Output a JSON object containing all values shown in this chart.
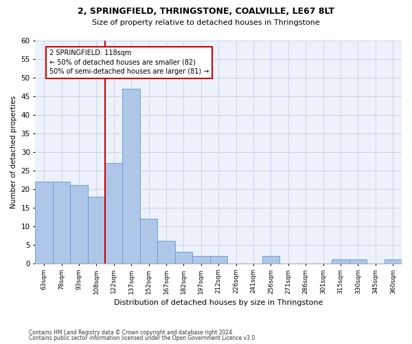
{
  "title_line1": "2, SPRINGFIELD, THRINGSTONE, COALVILLE, LE67 8LT",
  "title_line2": "Size of property relative to detached houses in Thringstone",
  "xlabel": "Distribution of detached houses by size in Thringstone",
  "ylabel": "Number of detached properties",
  "categories": [
    "63sqm",
    "78sqm",
    "93sqm",
    "108sqm",
    "122sqm",
    "137sqm",
    "152sqm",
    "167sqm",
    "182sqm",
    "197sqm",
    "212sqm",
    "226sqm",
    "241sqm",
    "256sqm",
    "271sqm",
    "286sqm",
    "301sqm",
    "315sqm",
    "330sqm",
    "345sqm",
    "360sqm"
  ],
  "values": [
    22,
    22,
    21,
    18,
    27,
    47,
    12,
    6,
    3,
    2,
    2,
    0,
    0,
    2,
    0,
    0,
    0,
    1,
    1,
    0,
    1
  ],
  "bar_color": "#aec6e8",
  "bar_edgecolor": "#5b9bd5",
  "vline_color": "#cc0000",
  "annotation_text": "2 SPRINGFIELD: 118sqm\n← 50% of detached houses are smaller (82)\n50% of semi-detached houses are larger (81) →",
  "annotation_box_edgecolor": "#cc0000",
  "ylim": [
    0,
    60
  ],
  "yticks": [
    0,
    5,
    10,
    15,
    20,
    25,
    30,
    35,
    40,
    45,
    50,
    55,
    60
  ],
  "footer_line1": "Contains HM Land Registry data © Crown copyright and database right 2024.",
  "footer_line2": "Contains public sector information licensed under the Open Government Licence v3.0.",
  "grid_color": "#c8d4e8",
  "background_color": "#edf1f9"
}
